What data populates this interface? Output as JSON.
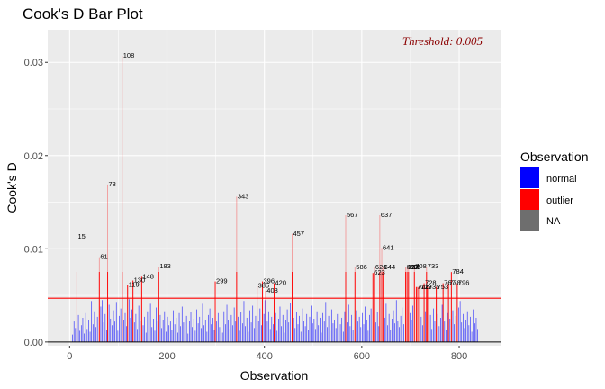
{
  "chart_data": {
    "type": "bar",
    "title": "Cook's D Bar Plot",
    "xlabel": "Observation",
    "ylabel": "Cook's D",
    "xlim": [
      -45,
      885
    ],
    "ylim": [
      -0.0004,
      0.0335
    ],
    "x_ticks": [
      0,
      200,
      400,
      600,
      800
    ],
    "y_ticks": [
      0.0,
      0.01,
      0.02,
      0.03
    ],
    "y_tick_labels": [
      "0.00",
      "0.01",
      "0.02",
      "0.03"
    ],
    "grid": true,
    "threshold": 0.0047,
    "threshold_label": "Threshold: 0.005",
    "colors": {
      "normal": "#0000ff",
      "outlier": "#ff0000",
      "NA": "#6e6e6e",
      "threshold": "#ff0000",
      "panel": "#ebebeb",
      "grid": "#ffffff"
    },
    "legend": {
      "title": "Observation",
      "position": "right",
      "entries": [
        {
          "label": "normal",
          "color": "#0000ff"
        },
        {
          "label": "outlier",
          "color": "#ff0000"
        },
        {
          "label": "NA",
          "color": "#6e6e6e"
        }
      ]
    },
    "outliers": [
      {
        "obs": 15,
        "d": 0.0113
      },
      {
        "obs": 61,
        "d": 0.0091
      },
      {
        "obs": 78,
        "d": 0.0169
      },
      {
        "obs": 108,
        "d": 0.0307
      },
      {
        "obs": 119,
        "d": 0.0061
      },
      {
        "obs": 130,
        "d": 0.0066
      },
      {
        "obs": 148,
        "d": 0.007
      },
      {
        "obs": 183,
        "d": 0.0081
      },
      {
        "obs": 299,
        "d": 0.0065
      },
      {
        "obs": 343,
        "d": 0.0156
      },
      {
        "obs": 385,
        "d": 0.006
      },
      {
        "obs": 396,
        "d": 0.0065
      },
      {
        "obs": 403,
        "d": 0.0055
      },
      {
        "obs": 420,
        "d": 0.0063
      },
      {
        "obs": 457,
        "d": 0.0116
      },
      {
        "obs": 567,
        "d": 0.0136
      },
      {
        "obs": 586,
        "d": 0.008
      },
      {
        "obs": 623,
        "d": 0.0074
      },
      {
        "obs": 626,
        "d": 0.008
      },
      {
        "obs": 637,
        "d": 0.0136
      },
      {
        "obs": 641,
        "d": 0.0101
      },
      {
        "obs": 644,
        "d": 0.008
      },
      {
        "obs": 690,
        "d": 0.008
      },
      {
        "obs": 693,
        "d": 0.008
      },
      {
        "obs": 696,
        "d": 0.008
      },
      {
        "obs": 708,
        "d": 0.0081
      },
      {
        "obs": 712,
        "d": 0.0059
      },
      {
        "obs": 715,
        "d": 0.0059
      },
      {
        "obs": 719,
        "d": 0.0059
      },
      {
        "obs": 728,
        "d": 0.0063
      },
      {
        "obs": 733,
        "d": 0.0081
      },
      {
        "obs": 735,
        "d": 0.0059
      },
      {
        "obs": 753,
        "d": 0.0059
      },
      {
        "obs": 767,
        "d": 0.0063
      },
      {
        "obs": 778,
        "d": 0.0063
      },
      {
        "obs": 784,
        "d": 0.0075
      },
      {
        "obs": 796,
        "d": 0.0063
      }
    ],
    "labels": [
      {
        "obs": 15,
        "d": 0.0113,
        "text": "15"
      },
      {
        "obs": 61,
        "d": 0.0091,
        "text": "61"
      },
      {
        "obs": 78,
        "d": 0.0169,
        "text": "78"
      },
      {
        "obs": 108,
        "d": 0.0307,
        "text": "108"
      },
      {
        "obs": 119,
        "d": 0.0061,
        "text": "119"
      },
      {
        "obs": 130,
        "d": 0.0066,
        "text": "130"
      },
      {
        "obs": 148,
        "d": 0.007,
        "text": "148"
      },
      {
        "obs": 183,
        "d": 0.0081,
        "text": "183"
      },
      {
        "obs": 299,
        "d": 0.0065,
        "text": "299"
      },
      {
        "obs": 343,
        "d": 0.0156,
        "text": "343"
      },
      {
        "obs": 385,
        "d": 0.006,
        "text": "385"
      },
      {
        "obs": 396,
        "d": 0.0065,
        "text": "396"
      },
      {
        "obs": 403,
        "d": 0.0055,
        "text": "403"
      },
      {
        "obs": 420,
        "d": 0.0063,
        "text": "420"
      },
      {
        "obs": 457,
        "d": 0.0116,
        "text": "457"
      },
      {
        "obs": 567,
        "d": 0.0136,
        "text": "567"
      },
      {
        "obs": 586,
        "d": 0.008,
        "text": "586"
      },
      {
        "obs": 623,
        "d": 0.0074,
        "text": "623"
      },
      {
        "obs": 626,
        "d": 0.008,
        "text": "626"
      },
      {
        "obs": 637,
        "d": 0.0136,
        "text": "637"
      },
      {
        "obs": 641,
        "d": 0.0101,
        "text": "641"
      },
      {
        "obs": 644,
        "d": 0.008,
        "text": "644"
      },
      {
        "obs": 690,
        "d": 0.008,
        "text": "690"
      },
      {
        "obs": 693,
        "d": 0.008,
        "text": "693"
      },
      {
        "obs": 696,
        "d": 0.008,
        "text": "696"
      },
      {
        "obs": 708,
        "d": 0.0081,
        "text": "708"
      },
      {
        "obs": 712,
        "d": 0.0059,
        "text": "712"
      },
      {
        "obs": 715,
        "d": 0.0059,
        "text": "715"
      },
      {
        "obs": 719,
        "d": 0.0059,
        "text": "719"
      },
      {
        "obs": 728,
        "d": 0.0063,
        "text": "728"
      },
      {
        "obs": 733,
        "d": 0.0081,
        "text": "733"
      },
      {
        "obs": 735,
        "d": 0.0059,
        "text": "735"
      },
      {
        "obs": 753,
        "d": 0.0059,
        "text": "753"
      },
      {
        "obs": 767,
        "d": 0.0063,
        "text": "767"
      },
      {
        "obs": 778,
        "d": 0.0063,
        "text": "778"
      },
      {
        "obs": 784,
        "d": 0.0075,
        "text": "784"
      },
      {
        "obs": 796,
        "d": 0.0063,
        "text": "796"
      }
    ],
    "normal_bars": [
      [
        6,
        0.0008
      ],
      [
        9,
        0.0022
      ],
      [
        12,
        0.0015
      ],
      [
        18,
        0.0029
      ],
      [
        21,
        0.0012
      ],
      [
        24,
        0.0018
      ],
      [
        27,
        0.0026
      ],
      [
        30,
        0.0009
      ],
      [
        33,
        0.0031
      ],
      [
        36,
        0.0014
      ],
      [
        39,
        0.0024
      ],
      [
        42,
        0.0011
      ],
      [
        45,
        0.0044
      ],
      [
        48,
        0.0019
      ],
      [
        51,
        0.0033
      ],
      [
        54,
        0.0016
      ],
      [
        57,
        0.0027
      ],
      [
        64,
        0.0038
      ],
      [
        67,
        0.0045
      ],
      [
        70,
        0.0021
      ],
      [
        73,
        0.003
      ],
      [
        76,
        0.0013
      ],
      [
        81,
        0.004
      ],
      [
        84,
        0.0025
      ],
      [
        87,
        0.0018
      ],
      [
        90,
        0.0034
      ],
      [
        93,
        0.0022
      ],
      [
        96,
        0.0043
      ],
      [
        99,
        0.0012
      ],
      [
        102,
        0.0028
      ],
      [
        105,
        0.0036
      ],
      [
        111,
        0.0024
      ],
      [
        114,
        0.0031
      ],
      [
        117,
        0.0017
      ],
      [
        122,
        0.0046
      ],
      [
        125,
        0.0026
      ],
      [
        128,
        0.0035
      ],
      [
        133,
        0.0021
      ],
      [
        136,
        0.003
      ],
      [
        139,
        0.0014
      ],
      [
        142,
        0.0039
      ],
      [
        145,
        0.0023
      ],
      [
        151,
        0.0018
      ],
      [
        154,
        0.0027
      ],
      [
        157,
        0.001
      ],
      [
        160,
        0.0033
      ],
      [
        163,
        0.002
      ],
      [
        166,
        0.0041
      ],
      [
        169,
        0.0016
      ],
      [
        172,
        0.0025
      ],
      [
        175,
        0.0012
      ],
      [
        178,
        0.0037
      ],
      [
        181,
        0.0022
      ],
      [
        186,
        0.0029
      ],
      [
        189,
        0.0015
      ],
      [
        192,
        0.0024
      ],
      [
        195,
        0.0033
      ],
      [
        198,
        0.0011
      ],
      [
        201,
        0.0027
      ],
      [
        204,
        0.0018
      ],
      [
        207,
        0.0022
      ],
      [
        210,
        0.0013
      ],
      [
        213,
        0.0034
      ],
      [
        216,
        0.0019
      ],
      [
        219,
        0.0026
      ],
      [
        222,
        0.001
      ],
      [
        225,
        0.0031
      ],
      [
        228,
        0.0017
      ],
      [
        231,
        0.0038
      ],
      [
        234,
        0.0021
      ],
      [
        237,
        0.0014
      ],
      [
        240,
        0.0028
      ],
      [
        243,
        0.0009
      ],
      [
        246,
        0.0023
      ],
      [
        249,
        0.0032
      ],
      [
        252,
        0.0016
      ],
      [
        255,
        0.0025
      ],
      [
        258,
        0.0012
      ],
      [
        261,
        0.0035
      ],
      [
        264,
        0.002
      ],
      [
        267,
        0.0027
      ],
      [
        270,
        0.0015
      ],
      [
        273,
        0.0041
      ],
      [
        276,
        0.0018
      ],
      [
        279,
        0.0024
      ],
      [
        282,
        0.0011
      ],
      [
        285,
        0.0029
      ],
      [
        288,
        0.0036
      ],
      [
        291,
        0.0019
      ],
      [
        294,
        0.0026
      ],
      [
        297,
        0.0013
      ],
      [
        302,
        0.0022
      ],
      [
        305,
        0.0031
      ],
      [
        308,
        0.0016
      ],
      [
        311,
        0.0025
      ],
      [
        314,
        0.001
      ],
      [
        317,
        0.0033
      ],
      [
        320,
        0.0019
      ],
      [
        323,
        0.004
      ],
      [
        326,
        0.0024
      ],
      [
        329,
        0.0014
      ],
      [
        332,
        0.0029
      ],
      [
        335,
        0.0018
      ],
      [
        338,
        0.0037
      ],
      [
        341,
        0.0022
      ],
      [
        346,
        0.0027
      ],
      [
        349,
        0.0012
      ],
      [
        352,
        0.0032
      ],
      [
        355,
        0.002
      ],
      [
        358,
        0.0044
      ],
      [
        361,
        0.0017
      ],
      [
        364,
        0.0026
      ],
      [
        367,
        0.0011
      ],
      [
        370,
        0.0034
      ],
      [
        373,
        0.0021
      ],
      [
        376,
        0.0039
      ],
      [
        379,
        0.0015
      ],
      [
        382,
        0.0028
      ],
      [
        388,
        0.0023
      ],
      [
        391,
        0.0036
      ],
      [
        394,
        0.0018
      ],
      [
        399,
        0.003
      ],
      [
        401,
        0.0045
      ],
      [
        406,
        0.0022
      ],
      [
        409,
        0.0033
      ],
      [
        412,
        0.0014
      ],
      [
        415,
        0.0027
      ],
      [
        418,
        0.0019
      ],
      [
        423,
        0.0031
      ],
      [
        426,
        0.0012
      ],
      [
        429,
        0.0025
      ],
      [
        432,
        0.0038
      ],
      [
        435,
        0.0017
      ],
      [
        438,
        0.0029
      ],
      [
        441,
        0.001
      ],
      [
        444,
        0.0024
      ],
      [
        447,
        0.0035
      ],
      [
        450,
        0.0021
      ],
      [
        453,
        0.0042
      ],
      [
        460,
        0.0026
      ],
      [
        463,
        0.0015
      ],
      [
        466,
        0.0032
      ],
      [
        469,
        0.0019
      ],
      [
        472,
        0.0028
      ],
      [
        475,
        0.0011
      ],
      [
        478,
        0.0036
      ],
      [
        481,
        0.0023
      ],
      [
        484,
        0.0017
      ],
      [
        487,
        0.003
      ],
      [
        490,
        0.0013
      ],
      [
        493,
        0.0027
      ],
      [
        496,
        0.0039
      ],
      [
        499,
        0.002
      ],
      [
        502,
        0.0025
      ],
      [
        505,
        0.0014
      ],
      [
        508,
        0.0033
      ],
      [
        511,
        0.0018
      ],
      [
        514,
        0.0026
      ],
      [
        517,
        0.001
      ],
      [
        520,
        0.0031
      ],
      [
        523,
        0.0022
      ],
      [
        526,
        0.0043
      ],
      [
        529,
        0.0016
      ],
      [
        532,
        0.0028
      ],
      [
        535,
        0.0012
      ],
      [
        538,
        0.0035
      ],
      [
        541,
        0.002
      ],
      [
        544,
        0.0024
      ],
      [
        547,
        0.0015
      ],
      [
        550,
        0.003
      ],
      [
        553,
        0.0037
      ],
      [
        556,
        0.0019
      ],
      [
        559,
        0.0026
      ],
      [
        562,
        0.0011
      ],
      [
        565,
        0.0033
      ],
      [
        570,
        0.0021
      ],
      [
        573,
        0.004
      ],
      [
        576,
        0.0017
      ],
      [
        579,
        0.0029
      ],
      [
        582,
        0.0013
      ],
      [
        589,
        0.0034
      ],
      [
        592,
        0.0022
      ],
      [
        595,
        0.0027
      ],
      [
        598,
        0.0016
      ],
      [
        601,
        0.0031
      ],
      [
        604,
        0.0019
      ],
      [
        607,
        0.0038
      ],
      [
        610,
        0.0024
      ],
      [
        613,
        0.0012
      ],
      [
        616,
        0.0029
      ],
      [
        619,
        0.0036
      ],
      [
        629,
        0.0021
      ],
      [
        632,
        0.0032
      ],
      [
        635,
        0.0017
      ],
      [
        647,
        0.0026
      ],
      [
        650,
        0.0041
      ],
      [
        653,
        0.0018
      ],
      [
        656,
        0.003
      ],
      [
        659,
        0.0013
      ],
      [
        662,
        0.0025
      ],
      [
        665,
        0.0034
      ],
      [
        668,
        0.002
      ],
      [
        671,
        0.0045
      ],
      [
        674,
        0.0023
      ],
      [
        677,
        0.0016
      ],
      [
        680,
        0.0028
      ],
      [
        683,
        0.0037
      ],
      [
        686,
        0.0019
      ],
      [
        699,
        0.0031
      ],
      [
        702,
        0.0024
      ],
      [
        705,
        0.0039
      ],
      [
        722,
        0.0027
      ],
      [
        725,
        0.0018
      ],
      [
        731,
        0.0033
      ],
      [
        738,
        0.0021
      ],
      [
        741,
        0.0029
      ],
      [
        744,
        0.0014
      ],
      [
        747,
        0.0036
      ],
      [
        750,
        0.0023
      ],
      [
        756,
        0.003
      ],
      [
        759,
        0.0017
      ],
      [
        762,
        0.0026
      ],
      [
        765,
        0.004
      ],
      [
        770,
        0.0022
      ],
      [
        773,
        0.0013
      ],
      [
        776,
        0.0031
      ],
      [
        781,
        0.0025
      ],
      [
        787,
        0.0034
      ],
      [
        790,
        0.0019
      ],
      [
        793,
        0.0028
      ],
      [
        799,
        0.0037
      ],
      [
        802,
        0.0044
      ],
      [
        805,
        0.0021
      ],
      [
        808,
        0.003
      ],
      [
        811,
        0.0015
      ],
      [
        814,
        0.0024
      ],
      [
        817,
        0.0033
      ],
      [
        820,
        0.0018
      ],
      [
        823,
        0.0027
      ],
      [
        826,
        0.0011
      ],
      [
        829,
        0.0035
      ],
      [
        832,
        0.002
      ],
      [
        835,
        0.0026
      ],
      [
        838,
        0.0014
      ]
    ]
  }
}
